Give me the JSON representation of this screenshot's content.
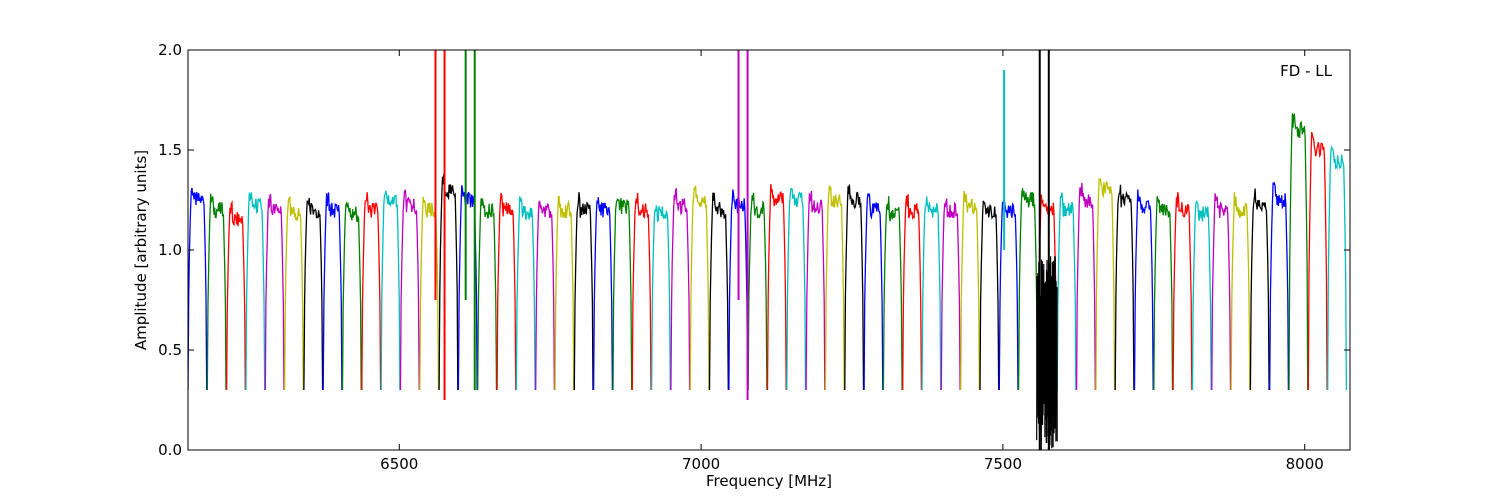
{
  "chart_data": {
    "type": "line",
    "title": "",
    "annotation": "FD - LL",
    "xlabel": "Frequency [MHz]",
    "ylabel": "Amplitude [arbitrary units]",
    "xlim": [
      6150,
      8075
    ],
    "ylim": [
      0.0,
      2.0
    ],
    "xticks": [
      6500,
      7000,
      7500,
      8000
    ],
    "xtick_labels": [
      "6500",
      "7000",
      "7500",
      "8000"
    ],
    "yticks": [
      0.0,
      0.5,
      1.0,
      1.5,
      2.0
    ],
    "ytick_labels": [
      "0.0",
      "0.5",
      "1.0",
      "1.5",
      "2.0"
    ],
    "grid": false,
    "legend": "none",
    "color_cycle": [
      "#0000ff",
      "#008000",
      "#ff0000",
      "#00bfbf",
      "#bf00bf",
      "#bfbf00",
      "#000000"
    ],
    "channel_width_mhz": 32,
    "first_channel_start_mhz": 6150,
    "channel_count": 60,
    "passband_levels": [
      1.25,
      1.2,
      1.15,
      1.22,
      1.2,
      1.18,
      1.2,
      1.2,
      1.18,
      1.2,
      1.25,
      1.22,
      1.2,
      1.3,
      1.25,
      1.2,
      1.2,
      1.18,
      1.2,
      1.2,
      1.2,
      1.2,
      1.22,
      1.2,
      1.18,
      1.22,
      1.25,
      1.2,
      1.22,
      1.2,
      1.25,
      1.25,
      1.22,
      1.25,
      1.25,
      1.2,
      1.18,
      1.2,
      1.2,
      1.2,
      1.22,
      1.2,
      1.2,
      1.25,
      1.2,
      1.2,
      1.25,
      1.3,
      1.25,
      1.22,
      1.2,
      1.2,
      1.18,
      1.2,
      1.2,
      1.22,
      1.25,
      1.6,
      1.5,
      1.45
    ],
    "spikes": [
      {
        "x": 6560,
        "ymin": 0.75,
        "ymax": 2.0,
        "color": "#ff0000"
      },
      {
        "x": 6575,
        "ymin": 0.25,
        "ymax": 2.0,
        "color": "#ff0000"
      },
      {
        "x": 6610,
        "ymin": 0.75,
        "ymax": 2.0,
        "color": "#008000"
      },
      {
        "x": 6625,
        "ymin": 0.3,
        "ymax": 2.0,
        "color": "#008000"
      },
      {
        "x": 7062,
        "ymin": 0.75,
        "ymax": 2.0,
        "color": "#bf00bf"
      },
      {
        "x": 7077,
        "ymin": 0.25,
        "ymax": 2.0,
        "color": "#bf00bf"
      },
      {
        "x": 7502,
        "ymin": 1.0,
        "ymax": 1.9,
        "color": "#00bfbf"
      },
      {
        "x": 7561,
        "ymin": 0.0,
        "ymax": 2.0,
        "color": "#000000"
      },
      {
        "x": 7576,
        "ymin": 0.0,
        "ymax": 2.0,
        "color": "#000000"
      }
    ],
    "noisy_band": {
      "x": [
        7556,
        7590
      ],
      "ymin": 0.0,
      "ymax": 1.0,
      "color": "#000000"
    }
  }
}
